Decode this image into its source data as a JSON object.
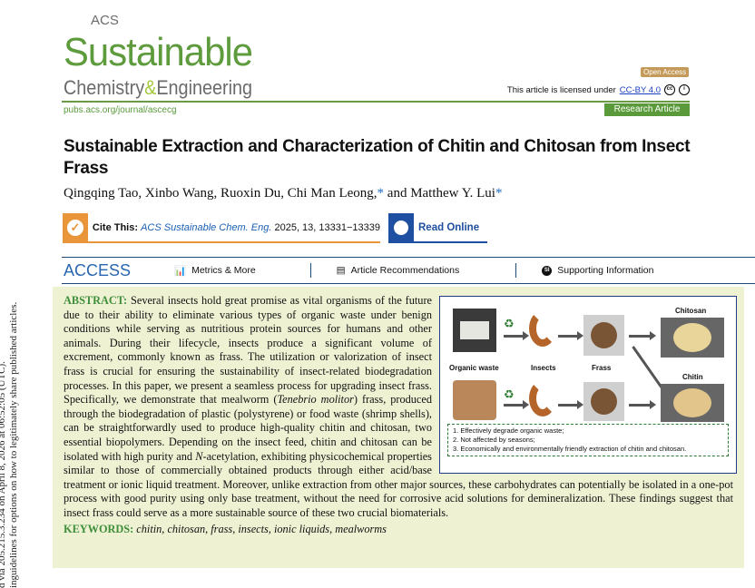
{
  "journal": {
    "logo_acs": "ACS",
    "logo_sustainable": "Sustainable",
    "logo_chemistry": "Chemistry",
    "logo_amp": "&",
    "logo_engineering": "Engineering",
    "url": "pubs.acs.org/journal/ascecg"
  },
  "license": {
    "badge": "Open Access",
    "text": "This article is licensed under",
    "link": "CC-BY 4.0",
    "article_type": "Research Article"
  },
  "article": {
    "title": "Sustainable Extraction and Characterization of Chitin and Chitosan from Insect Frass",
    "authors": [
      {
        "name": "Qingqing Tao,"
      },
      {
        "name": "Xinbo Wang,"
      },
      {
        "name": "Ruoxin Du,"
      },
      {
        "name": "Chi Man Leong,",
        "star": "*"
      },
      {
        "name": "and Matthew Y. Lui",
        "star": "*"
      }
    ]
  },
  "cite": {
    "label": "Cite This:",
    "journal": "ACS Sustainable Chem. Eng.",
    "ref": "2025, 13, 13331−13339",
    "read_online": "Read Online"
  },
  "access": {
    "label": "ACCESS",
    "metrics": "Metrics & More",
    "recommendations": "Article Recommendations",
    "supporting": "Supporting Information",
    "si_badge": "SI"
  },
  "abstract": {
    "label": "ABSTRACT:",
    "text": "Several insects hold great promise as vital organisms of the future due to their ability to eliminate various types of organic waste under benign conditions while serving as nutritious protein sources for humans and other animals. During their lifecycle, insects produce a significant volume of excrement, commonly known as frass. The utilization or valorization of insect frass is crucial for ensuring the sustainability of insect-related biodegradation processes. In this paper, we present a seamless process for upgrading insect frass. Specifically, we demonstrate that mealworm (",
    "species": "Tenebrio molitor",
    "text2": ") frass, produced through the biodegradation of plastic (polystyrene) or food waste (shrimp shells), can be straightforwardly used to produce high-quality chitin and chitosan, two essential biopolymers. Depending on the insect feed, chitin and chitosan can be isolated with high purity and ",
    "nacetyl": "N",
    "text3": "-acetylation, exhibiting physicochemical properties similar to those of commercially obtained products through either acid/base treatment or ionic liquid treatment. Moreover, unlike extraction from other major sources, these carbohydrates can potentially be isolated in a one-pot process with good purity using only base treatment, without the need for corrosive acid solutions for demineralization. These findings suggest that insect frass could serve as a more sustainable source of these two crucial biomaterials."
  },
  "toc": {
    "organic_waste": "Organic waste",
    "insects": "Insects",
    "frass": "Frass",
    "chitosan": "Chitosan",
    "chitin": "Chitin",
    "points": [
      "1. Effectively degrade organic waste;",
      "2. Not affected by seasons;",
      "3. Economically and environmentally friendly extraction of chitin and chitosan."
    ]
  },
  "keywords": {
    "label": "KEYWORDS:",
    "text": "chitin, chitosan, frass, insects, ionic liquids, mealworms"
  },
  "sidebar": {
    "line1": "d via 205.215.3.234 on April 8, 2026 at 06:52:05 (UTC).",
    "line2": "inguidelines for options on how to legitimately share published articles."
  },
  "colors": {
    "green": "#5b9a3a",
    "orange": "#e9963a",
    "blue": "#1e4fa0",
    "abstract_bg": "#eef2d3"
  }
}
